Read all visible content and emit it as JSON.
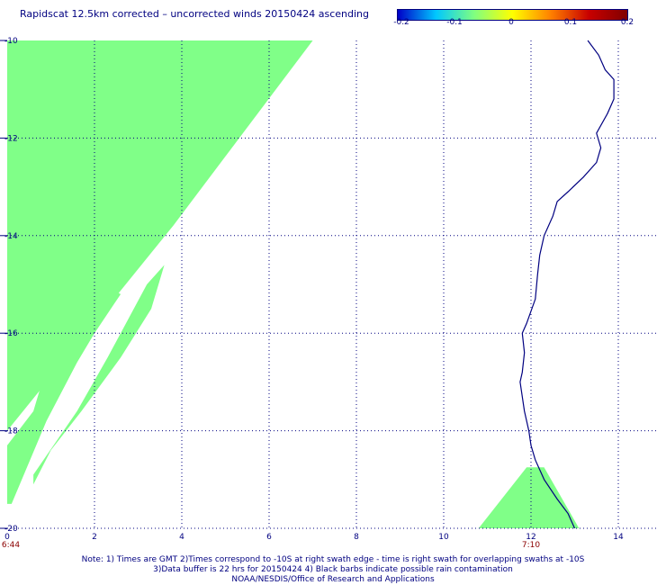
{
  "title": "Rapidscat 12.5km corrected – uncorrected winds 20150424 ascending",
  "colorbar": {
    "labels": [
      "-0.2",
      "-0.1",
      "0",
      "0.1",
      "0.2"
    ],
    "colors": [
      "#0000c8",
      "#00c8ff",
      "#80ff80",
      "#ffff00",
      "#ff8000",
      "#c80000",
      "#800000"
    ]
  },
  "map": {
    "lon_range": [
      0,
      14
    ],
    "lat_range": [
      -20,
      -10
    ],
    "x_tick_labels": [
      "0",
      "2",
      "4",
      "6",
      "8",
      "10",
      "12",
      "14"
    ],
    "y_tick_labels": [
      "-10",
      "-12",
      "-14",
      "-16",
      "-18",
      "-20"
    ],
    "grid": "dotted",
    "fill_color": "#80ff88",
    "coast_color": "#000080",
    "swath_times": [
      {
        "label": "6:44",
        "lon": 0
      },
      {
        "label": "7:10",
        "lon": 12
      }
    ],
    "wind_difference_value": "0"
  },
  "notes": [
    "Note: 1) Times are GMT 2)Times correspond to -10S at right swath edge - time is right swath for overlapping swaths at -10S",
    "3)Data buffer is 22 hrs for 20150424 4) Black barbs indicate possible rain contamination",
    "NOAA/NESDIS/Office of Research and Applications"
  ]
}
